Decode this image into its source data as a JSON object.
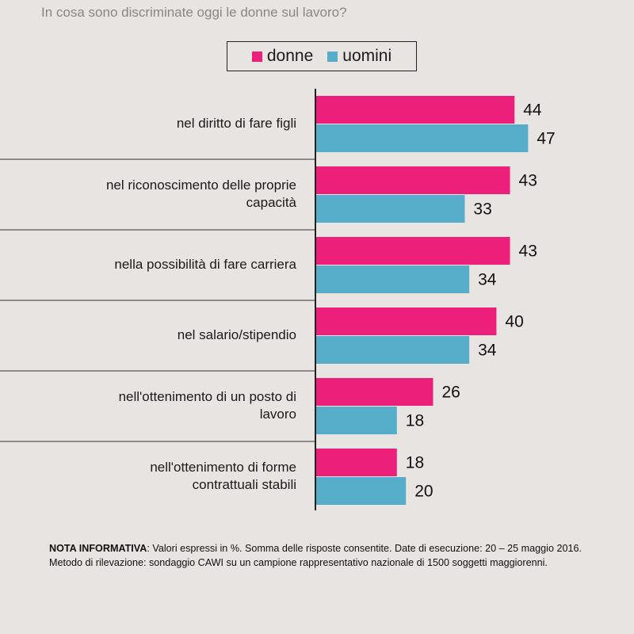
{
  "chart_data": {
    "type": "bar",
    "orientation": "horizontal",
    "title": "In cosa sono discriminate oggi le donne sul lavoro?",
    "categories": [
      [
        "nel diritto di fare figli"
      ],
      [
        "nel riconoscimento delle proprie",
        "capacità"
      ],
      [
        "nella possibilità di fare carriera"
      ],
      [
        "nel salario/stipendio"
      ],
      [
        "nell'ottenimento di un posto di",
        "lavoro"
      ],
      [
        "nell'ottenimento di forme",
        "contrattuali stabili"
      ]
    ],
    "series": [
      {
        "name": "donne",
        "color": "#ec1f7a",
        "values": [
          44,
          43,
          43,
          40,
          26,
          18
        ]
      },
      {
        "name": "uomini",
        "color": "#55adc9",
        "values": [
          47,
          33,
          34,
          34,
          18,
          20
        ]
      }
    ],
    "xlim": [
      0,
      100
    ],
    "legend_position": "top-center",
    "grid": false
  },
  "footnote": {
    "label": "NOTA INFORMATIVA",
    "text": ": Valori espressi in %. Somma delle risposte consentite. Date di esecuzione: 20 – 25 maggio 2016. Metodo di rilevazione: sondaggio CAWI su un campione rappresentativo nazionale di 1500 soggetti maggiorenni."
  }
}
